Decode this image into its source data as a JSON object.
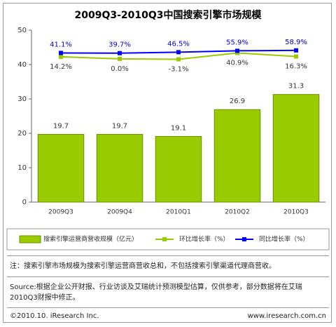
{
  "chart_data": {
    "type": "bar",
    "title": "2009Q3-2010Q3中国搜索引擎市场规模",
    "categories": [
      "2009Q3",
      "2009Q4",
      "2010Q1",
      "2010Q2",
      "2010Q3"
    ],
    "series": [
      {
        "name": "搜索引擎运营商营收规模（亿元）",
        "color": "#99cc00",
        "values": [
          19.7,
          19.7,
          19.1,
          26.9,
          31.3
        ]
      },
      {
        "name": "环比增长率（%）",
        "color": "#99cc00",
        "axis": "y2",
        "type": "line",
        "values": [
          14.2,
          0.0,
          -3.1,
          40.9,
          16.3
        ],
        "value_labels": [
          "14.2%",
          "0.0%",
          "-3.1%",
          "40.9%",
          "16.3%"
        ]
      },
      {
        "name": "同比增长率（%）",
        "color": "#0000ff",
        "axis": "y2",
        "type": "line",
        "values": [
          41.1,
          39.7,
          46.5,
          55.9,
          58.9
        ],
        "value_labels": [
          "41.1%",
          "39.7%",
          "46.5%",
          "55.9%",
          "58.9%"
        ]
      }
    ],
    "ylim": [
      0,
      50
    ],
    "yticks": [
      0,
      10,
      20,
      30,
      40,
      50
    ],
    "y2lim": [
      -1000,
      200
    ],
    "note": "注：搜索引擎市场规模为搜索引擎运营商营收总和，不包括搜索引擎渠道代理商营收。",
    "source": "Source:根据企业公开财报、行业访谈及艾瑞统计预测模型估算，仅供参考，部分数据将在艾瑞2010Q3财报中修正。",
    "copyright": "©2010.10. iResearch Inc.",
    "website": "www.iresearch.com.cn"
  }
}
